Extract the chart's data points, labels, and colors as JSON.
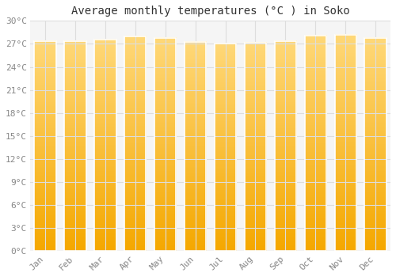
{
  "title": "Average monthly temperatures (°C ) in Soko",
  "months": [
    "Jan",
    "Feb",
    "Mar",
    "Apr",
    "May",
    "Jun",
    "Jul",
    "Aug",
    "Sep",
    "Oct",
    "Nov",
    "Dec"
  ],
  "temperatures": [
    27.3,
    27.4,
    27.6,
    28.0,
    27.8,
    27.2,
    27.0,
    27.1,
    27.4,
    28.1,
    28.2,
    27.8
  ],
  "ylim": [
    0,
    30
  ],
  "yticks": [
    0,
    3,
    6,
    9,
    12,
    15,
    18,
    21,
    24,
    27,
    30
  ],
  "bar_color_bottom": "#F5A800",
  "bar_color_top": "#FFD878",
  "bar_edge_color": "#CCCCCC",
  "background_color": "#ffffff",
  "plot_bg_color": "#f5f5f5",
  "grid_color": "#dddddd",
  "title_fontsize": 10,
  "tick_fontsize": 8,
  "tick_color": "#888888",
  "font_family": "monospace",
  "bar_width": 0.72
}
